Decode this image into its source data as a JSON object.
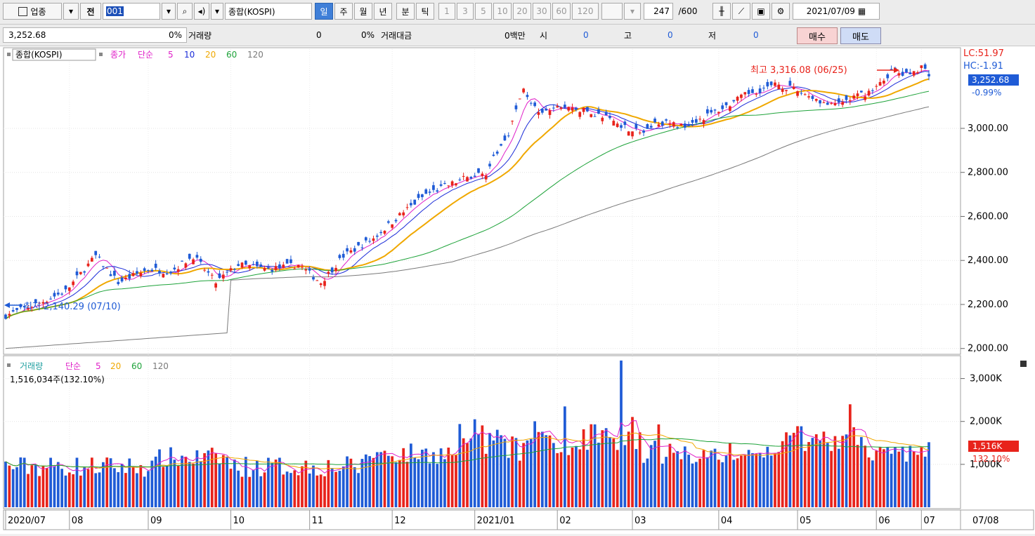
{
  "toolbar": {
    "market": "업종",
    "prev": "전",
    "code": "001",
    "name": "종합(KOSPI)",
    "periods": [
      "일",
      "주",
      "월",
      "년",
      "분",
      "틱"
    ],
    "active_period": "일",
    "intervals": [
      "1",
      "3",
      "5",
      "10",
      "20",
      "30",
      "60",
      "120"
    ],
    "count": "247",
    "count_max": "/600",
    "date": "2021/07/09"
  },
  "quote": {
    "price": "3,252.68",
    "change_pct": "0%",
    "volume_label": "거래량",
    "volume": "0",
    "volume_pct": "0%",
    "amount_label": "거래대금",
    "amount": "0백만",
    "open_label": "시",
    "open": "0",
    "high_label": "고",
    "high": "0",
    "low_label": "저",
    "low": "0",
    "buy": "매수",
    "sell": "매도"
  },
  "legend": {
    "price_title": "종합(KOSPI)",
    "close_label": "종가",
    "ma_label": "단순",
    "ma": [
      "5",
      "10",
      "20",
      "60",
      "120"
    ],
    "volume_title": "거래량",
    "vol_ma_label": "단순",
    "vol_ma": [
      "5",
      "20",
      "60",
      "120"
    ],
    "volume_value": "1,516,034주(132.10%)"
  },
  "annotations": {
    "high": "최고 3,316.08 (06/25)",
    "low": "최저 2,140.29 (07/10)",
    "lc": "LC:51.97",
    "hc": "HC:-1.91",
    "last_price": "3,252.68",
    "last_pct": "-0.99%",
    "last_volume": "1,516K",
    "last_volume_pct": "132.10%"
  },
  "colors": {
    "up": "#e8231b",
    "down": "#1f5bd6",
    "ma5": "#e020c8",
    "ma10": "#1a2bd8",
    "ma20": "#f0a800",
    "ma60": "#1ea33a",
    "ma120": "#7a7a7a"
  },
  "chart_data": {
    "type": "candlestick",
    "series_name": "종합(KOSPI)",
    "y_ticks": [
      "3,000.00",
      "2,800.00",
      "2,600.00",
      "2,400.00",
      "2,200.00",
      "2,000.00"
    ],
    "y_tick_values": [
      3000,
      2800,
      2600,
      2400,
      2200,
      2000
    ],
    "volume_ticks": [
      "3,000K",
      "2,000K",
      "1,000K"
    ],
    "volume_tick_values": [
      3000,
      2000,
      1000
    ],
    "x_labels": [
      "2020/07",
      "08",
      "09",
      "10",
      "11",
      "12",
      "2021/01",
      "02",
      "03",
      "04",
      "05",
      "06",
      "07",
      "07/08"
    ],
    "close_path": [
      [
        0,
        2150
      ],
      [
        8,
        2200
      ],
      [
        16,
        2260
      ],
      [
        24,
        2420
      ],
      [
        30,
        2300
      ],
      [
        38,
        2360
      ],
      [
        44,
        2350
      ],
      [
        50,
        2420
      ],
      [
        56,
        2300
      ],
      [
        62,
        2380
      ],
      [
        70,
        2360
      ],
      [
        78,
        2380
      ],
      [
        84,
        2300
      ],
      [
        90,
        2420
      ],
      [
        98,
        2500
      ],
      [
        106,
        2620
      ],
      [
        112,
        2700
      ],
      [
        122,
        2770
      ],
      [
        128,
        2800
      ],
      [
        134,
        2980
      ],
      [
        138,
        3180
      ],
      [
        142,
        3060
      ],
      [
        148,
        3100
      ],
      [
        154,
        3080
      ],
      [
        160,
        3050
      ],
      [
        166,
        3000
      ],
      [
        170,
        2980
      ],
      [
        174,
        3030
      ],
      [
        180,
        3010
      ],
      [
        186,
        3050
      ],
      [
        192,
        3100
      ],
      [
        198,
        3160
      ],
      [
        206,
        3200
      ],
      [
        214,
        3150
      ],
      [
        220,
        3100
      ],
      [
        226,
        3140
      ],
      [
        232,
        3180
      ],
      [
        236,
        3260
      ],
      [
        240,
        3240
      ],
      [
        244,
        3280
      ],
      [
        246,
        3250
      ]
    ],
    "price_range": [
      1980,
      3360
    ],
    "volume_range": [
      0,
      3500
    ],
    "num_candles": 247
  }
}
